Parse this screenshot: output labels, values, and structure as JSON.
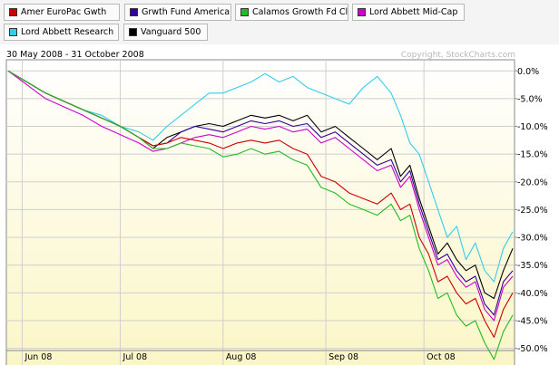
{
  "legend": [
    {
      "name": "Amer EuroPac Gwth",
      "color": "#cc0000"
    },
    {
      "name": "Grwth Fund America",
      "color": "#330099"
    },
    {
      "name": "Calamos Growth Fd Cl",
      "color": "#22bb22"
    },
    {
      "name": "Lord Abbett Mid-Cap",
      "color": "#cc00cc"
    },
    {
      "name": "Lord Abbett Research",
      "color": "#33ccee"
    },
    {
      "name": "Vanguard 500",
      "color": "#000000"
    }
  ],
  "date_range": "30 May 2008 - 31 October 2008",
  "copyright": "Copyright, StockCharts.com",
  "chart_data": {
    "type": "line",
    "x_ticks": [
      "Jun 08",
      "Jul 08",
      "Aug 08",
      "Sep 08",
      "Oct 08"
    ],
    "y_ticks": [
      "0.0%",
      "-5.0%",
      "-10.0%",
      "-15.0%",
      "-20.0%",
      "-25.0%",
      "-30.0%",
      "-35.0%",
      "-40.0%",
      "-45.0%",
      "-50.0%"
    ],
    "ylim": [
      -53,
      2
    ],
    "xlim": [
      0,
      108
    ],
    "x_tick_index": [
      3,
      24,
      46,
      68,
      89
    ],
    "grid": true,
    "legend_position": "top",
    "series": [
      {
        "name": "Lord Abbett Research",
        "color": "#33ccee",
        "points": [
          [
            0,
            0
          ],
          [
            4,
            -2
          ],
          [
            8,
            -4
          ],
          [
            12,
            -5.5
          ],
          [
            16,
            -7
          ],
          [
            20,
            -8
          ],
          [
            24,
            -10
          ],
          [
            28,
            -11
          ],
          [
            31,
            -12.5
          ],
          [
            34,
            -10
          ],
          [
            37,
            -8
          ],
          [
            40,
            -6
          ],
          [
            43,
            -4
          ],
          [
            46,
            -4
          ],
          [
            49,
            -3
          ],
          [
            52,
            -2
          ],
          [
            55,
            -0.5
          ],
          [
            58,
            -2
          ],
          [
            61,
            -1
          ],
          [
            64,
            -3
          ],
          [
            67,
            -4
          ],
          [
            70,
            -5
          ],
          [
            73,
            -6
          ],
          [
            76,
            -3
          ],
          [
            79,
            -1
          ],
          [
            82,
            -4
          ],
          [
            84,
            -8
          ],
          [
            86,
            -13
          ],
          [
            88,
            -15
          ],
          [
            90,
            -20
          ],
          [
            92,
            -25
          ],
          [
            94,
            -30
          ],
          [
            96,
            -28
          ],
          [
            98,
            -34
          ],
          [
            100,
            -31
          ],
          [
            102,
            -36
          ],
          [
            104,
            -38
          ],
          [
            106,
            -32
          ],
          [
            108,
            -29
          ]
        ]
      },
      {
        "name": "Vanguard 500",
        "color": "#000000",
        "points": [
          [
            0,
            0
          ],
          [
            4,
            -2
          ],
          [
            8,
            -4
          ],
          [
            12,
            -5.5
          ],
          [
            16,
            -7
          ],
          [
            20,
            -8.5
          ],
          [
            24,
            -10
          ],
          [
            28,
            -12
          ],
          [
            31,
            -14
          ],
          [
            34,
            -12
          ],
          [
            37,
            -11
          ],
          [
            40,
            -10
          ],
          [
            43,
            -9.5
          ],
          [
            46,
            -10
          ],
          [
            49,
            -9
          ],
          [
            52,
            -8
          ],
          [
            55,
            -8.5
          ],
          [
            58,
            -8
          ],
          [
            61,
            -9
          ],
          [
            64,
            -8
          ],
          [
            67,
            -11
          ],
          [
            70,
            -10
          ],
          [
            73,
            -12
          ],
          [
            76,
            -14
          ],
          [
            79,
            -16
          ],
          [
            82,
            -14
          ],
          [
            84,
            -19
          ],
          [
            86,
            -17
          ],
          [
            88,
            -23
          ],
          [
            90,
            -28
          ],
          [
            92,
            -33
          ],
          [
            94,
            -31
          ],
          [
            96,
            -34
          ],
          [
            98,
            -36
          ],
          [
            100,
            -35
          ],
          [
            102,
            -40
          ],
          [
            104,
            -41
          ],
          [
            106,
            -36
          ],
          [
            108,
            -32
          ]
        ]
      },
      {
        "name": "Grwth Fund America",
        "color": "#330099",
        "points": [
          [
            0,
            0
          ],
          [
            4,
            -2
          ],
          [
            8,
            -4
          ],
          [
            12,
            -5.5
          ],
          [
            16,
            -7
          ],
          [
            20,
            -8.5
          ],
          [
            24,
            -10
          ],
          [
            28,
            -12
          ],
          [
            31,
            -13.5
          ],
          [
            34,
            -13
          ],
          [
            37,
            -11
          ],
          [
            40,
            -10
          ],
          [
            43,
            -10.5
          ],
          [
            46,
            -11
          ],
          [
            49,
            -10
          ],
          [
            52,
            -9
          ],
          [
            55,
            -9.5
          ],
          [
            58,
            -9
          ],
          [
            61,
            -10
          ],
          [
            64,
            -9.5
          ],
          [
            67,
            -12
          ],
          [
            70,
            -11
          ],
          [
            73,
            -13
          ],
          [
            76,
            -15
          ],
          [
            79,
            -17
          ],
          [
            82,
            -16
          ],
          [
            84,
            -20
          ],
          [
            86,
            -18
          ],
          [
            88,
            -24
          ],
          [
            90,
            -29
          ],
          [
            92,
            -34
          ],
          [
            94,
            -33
          ],
          [
            96,
            -36
          ],
          [
            98,
            -38
          ],
          [
            100,
            -37
          ],
          [
            102,
            -42
          ],
          [
            104,
            -44
          ],
          [
            106,
            -38
          ],
          [
            108,
            -36
          ]
        ]
      },
      {
        "name": "Lord Abbett Mid-Cap",
        "color": "#cc00cc",
        "points": [
          [
            0,
            0
          ],
          [
            4,
            -2.5
          ],
          [
            8,
            -5
          ],
          [
            12,
            -6.5
          ],
          [
            16,
            -8
          ],
          [
            20,
            -10
          ],
          [
            24,
            -11.5
          ],
          [
            28,
            -13
          ],
          [
            31,
            -14.5
          ],
          [
            34,
            -14
          ],
          [
            37,
            -13
          ],
          [
            40,
            -12
          ],
          [
            43,
            -11.5
          ],
          [
            46,
            -12
          ],
          [
            49,
            -11
          ],
          [
            52,
            -10
          ],
          [
            55,
            -10.5
          ],
          [
            58,
            -10
          ],
          [
            61,
            -11
          ],
          [
            64,
            -10.5
          ],
          [
            67,
            -13
          ],
          [
            70,
            -12
          ],
          [
            73,
            -14
          ],
          [
            76,
            -16
          ],
          [
            79,
            -18
          ],
          [
            82,
            -17
          ],
          [
            84,
            -21
          ],
          [
            86,
            -19
          ],
          [
            88,
            -25
          ],
          [
            90,
            -30
          ],
          [
            92,
            -35
          ],
          [
            94,
            -34
          ],
          [
            96,
            -37
          ],
          [
            98,
            -39
          ],
          [
            100,
            -38
          ],
          [
            102,
            -43
          ],
          [
            104,
            -45
          ],
          [
            106,
            -39
          ],
          [
            108,
            -37
          ]
        ]
      },
      {
        "name": "Amer EuroPac Gwth",
        "color": "#cc0000",
        "points": [
          [
            0,
            0
          ],
          [
            4,
            -2
          ],
          [
            8,
            -4
          ],
          [
            12,
            -5.5
          ],
          [
            16,
            -7
          ],
          [
            20,
            -8.5
          ],
          [
            24,
            -10
          ],
          [
            28,
            -12
          ],
          [
            31,
            -13.5
          ],
          [
            34,
            -13
          ],
          [
            37,
            -12
          ],
          [
            40,
            -12.5
          ],
          [
            43,
            -13
          ],
          [
            46,
            -14
          ],
          [
            49,
            -13
          ],
          [
            52,
            -12.5
          ],
          [
            55,
            -13
          ],
          [
            58,
            -12.5
          ],
          [
            61,
            -14
          ],
          [
            64,
            -15
          ],
          [
            67,
            -19
          ],
          [
            70,
            -20
          ],
          [
            73,
            -22
          ],
          [
            76,
            -23
          ],
          [
            79,
            -24
          ],
          [
            82,
            -22
          ],
          [
            84,
            -25
          ],
          [
            86,
            -24
          ],
          [
            88,
            -30
          ],
          [
            90,
            -33
          ],
          [
            92,
            -38
          ],
          [
            94,
            -37
          ],
          [
            96,
            -40
          ],
          [
            98,
            -42
          ],
          [
            100,
            -41
          ],
          [
            102,
            -45
          ],
          [
            104,
            -48
          ],
          [
            106,
            -43
          ],
          [
            108,
            -40
          ]
        ]
      },
      {
        "name": "Calamos Growth Fd Cl",
        "color": "#22bb22",
        "points": [
          [
            0,
            0
          ],
          [
            4,
            -2
          ],
          [
            8,
            -4
          ],
          [
            12,
            -5.5
          ],
          [
            16,
            -7
          ],
          [
            20,
            -8.5
          ],
          [
            24,
            -10
          ],
          [
            28,
            -12
          ],
          [
            31,
            -14
          ],
          [
            34,
            -14
          ],
          [
            37,
            -13
          ],
          [
            40,
            -13.5
          ],
          [
            43,
            -14
          ],
          [
            46,
            -15.5
          ],
          [
            49,
            -15
          ],
          [
            52,
            -14
          ],
          [
            55,
            -15
          ],
          [
            58,
            -14.5
          ],
          [
            61,
            -16
          ],
          [
            64,
            -17
          ],
          [
            67,
            -21
          ],
          [
            70,
            -22
          ],
          [
            73,
            -24
          ],
          [
            76,
            -25
          ],
          [
            79,
            -26
          ],
          [
            82,
            -24
          ],
          [
            84,
            -27
          ],
          [
            86,
            -26
          ],
          [
            88,
            -32
          ],
          [
            90,
            -36
          ],
          [
            92,
            -41
          ],
          [
            94,
            -40
          ],
          [
            96,
            -44
          ],
          [
            98,
            -46
          ],
          [
            100,
            -45
          ],
          [
            102,
            -49
          ],
          [
            104,
            -52
          ],
          [
            106,
            -47
          ],
          [
            108,
            -44
          ]
        ]
      }
    ]
  }
}
